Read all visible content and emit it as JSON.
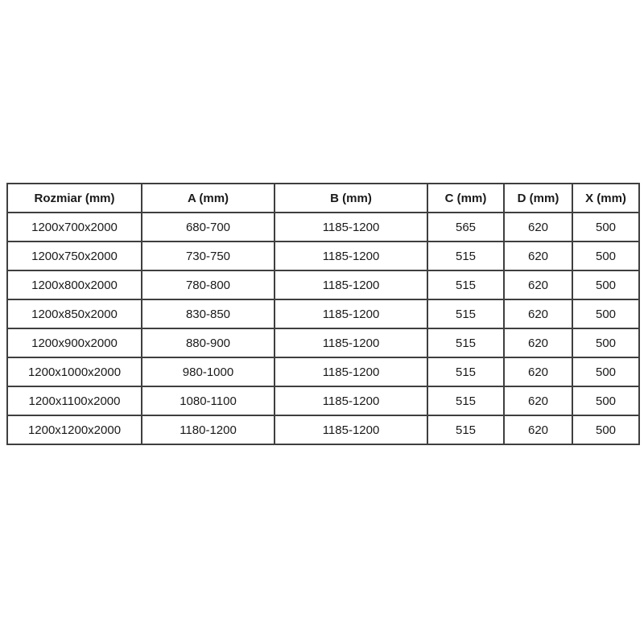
{
  "table": {
    "headers": [
      "Rozmiar (mm)",
      "A (mm)",
      "B (mm)",
      "C (mm)",
      "D (mm)",
      "X (mm)"
    ],
    "rows": [
      [
        "1200x700x2000",
        "680-700",
        "1185-1200",
        "565",
        "620",
        "500"
      ],
      [
        "1200x750x2000",
        "730-750",
        "1185-1200",
        "515",
        "620",
        "500"
      ],
      [
        "1200x800x2000",
        "780-800",
        "1185-1200",
        "515",
        "620",
        "500"
      ],
      [
        "1200x850x2000",
        "830-850",
        "1185-1200",
        "515",
        "620",
        "500"
      ],
      [
        "1200x900x2000",
        "880-900",
        "1185-1200",
        "515",
        "620",
        "500"
      ],
      [
        "1200x1000x2000",
        "980-1000",
        "1185-1200",
        "515",
        "620",
        "500"
      ],
      [
        "1200x1100x2000",
        "1080-1100",
        "1185-1200",
        "515",
        "620",
        "500"
      ],
      [
        "1200x1200x2000",
        "1180-1200",
        "1185-1200",
        "515",
        "620",
        "500"
      ]
    ],
    "colors": {
      "border": "#3f3f3f",
      "text": "#1a1a1a",
      "background": "#ffffff"
    }
  }
}
